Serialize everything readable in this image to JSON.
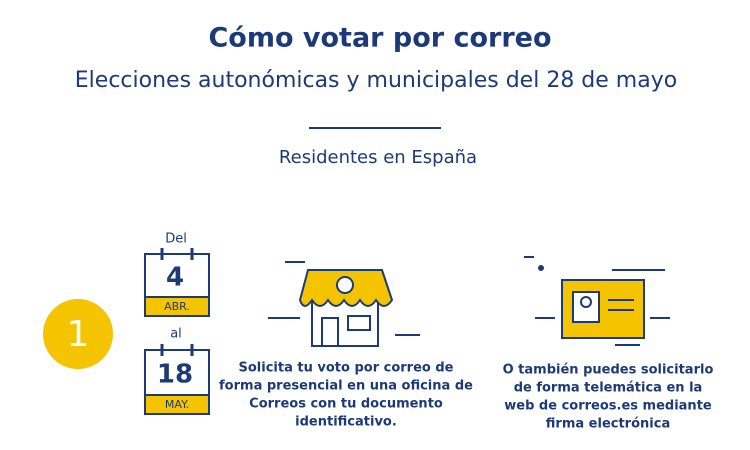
{
  "header": {
    "title": "Cómo votar por correo",
    "subtitle": "Elecciones autonómicas y municipales del 28 de mayo",
    "section": "Residentes en España"
  },
  "step": {
    "number": "1"
  },
  "dates": {
    "from_label": "Del",
    "from_day": "4",
    "from_month": "ABR.",
    "to_label": "al",
    "to_day": "18",
    "to_month": "MAY."
  },
  "options": [
    {
      "lines": [
        "Solicita tu voto por correo de",
        "forma presencial en una oficina de",
        "Correos con tu documento",
        "identificativo."
      ]
    },
    {
      "lines": [
        "O también puedes solicitarlo",
        "de forma telemática en la",
        "web de correos.es mediante",
        "firma electrónica"
      ]
    }
  ]
}
